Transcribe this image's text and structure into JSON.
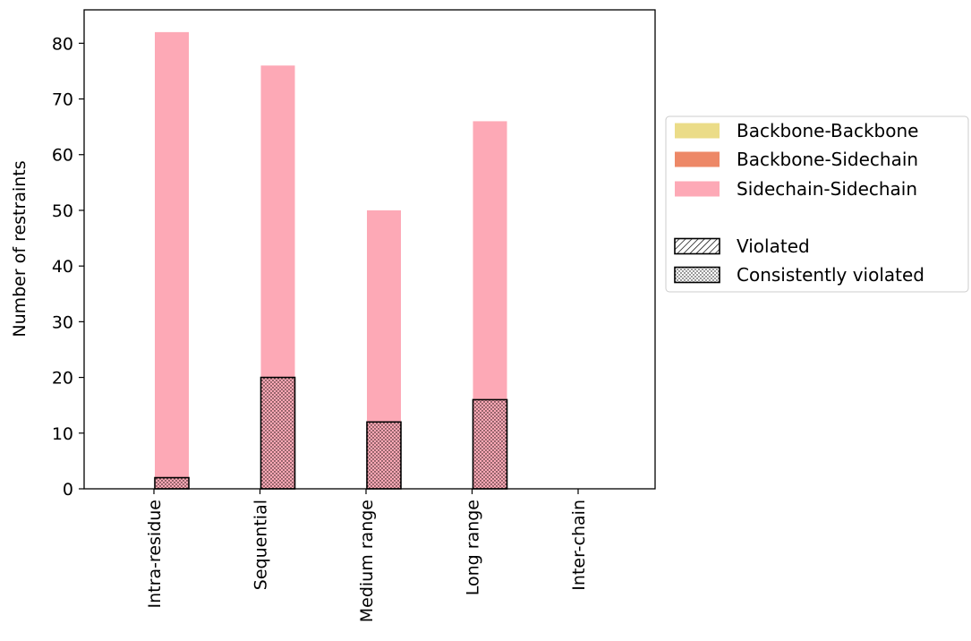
{
  "chart_data": {
    "type": "bar",
    "categories": [
      "Intra-residue",
      "Sequential",
      "Medium range",
      "Long range",
      "Inter-chain"
    ],
    "ylabel": "Number of restraints",
    "xlabel": "",
    "ylim": [
      0,
      86
    ],
    "yticks": [
      0,
      10,
      20,
      30,
      40,
      50,
      60,
      70,
      80
    ],
    "grid": false,
    "legend_position": "right",
    "groups": [
      {
        "name": "Violated",
        "hatch": "diagonal",
        "stack": [
          {
            "name": "Backbone-Backbone",
            "values": [
              0,
              0,
              0,
              0,
              0
            ]
          },
          {
            "name": "Backbone-Sidechain",
            "values": [
              0,
              0,
              0,
              0,
              0
            ]
          },
          {
            "name": "Sidechain-Sidechain",
            "values": [
              0,
              0,
              0,
              0,
              0
            ]
          }
        ]
      },
      {
        "name": "Consistently violated",
        "hatch": "dots",
        "stack": [
          {
            "name": "Backbone-Backbone",
            "values": [
              0,
              0,
              0,
              0,
              0
            ]
          },
          {
            "name": "Backbone-Sidechain",
            "values": [
              0,
              0,
              0,
              0,
              0
            ]
          },
          {
            "name": "Sidechain-Sidechain",
            "values": [
              2,
              20,
              12,
              16,
              0
            ]
          }
        ]
      }
    ],
    "totals": [
      82,
      76,
      50,
      66,
      0
    ],
    "colors": {
      "Backbone-Backbone": "#ebdc88",
      "Backbone-Sidechain": "#ed8867",
      "Sidechain-Sidechain": "#fda9b6",
      "hatch": "#000000"
    },
    "legend": {
      "series": [
        "Backbone-Backbone",
        "Backbone-Sidechain",
        "Sidechain-Sidechain"
      ],
      "hatches": [
        {
          "label": "Violated",
          "hatch": "diagonal"
        },
        {
          "label": "Consistently violated",
          "hatch": "dots"
        }
      ]
    }
  }
}
